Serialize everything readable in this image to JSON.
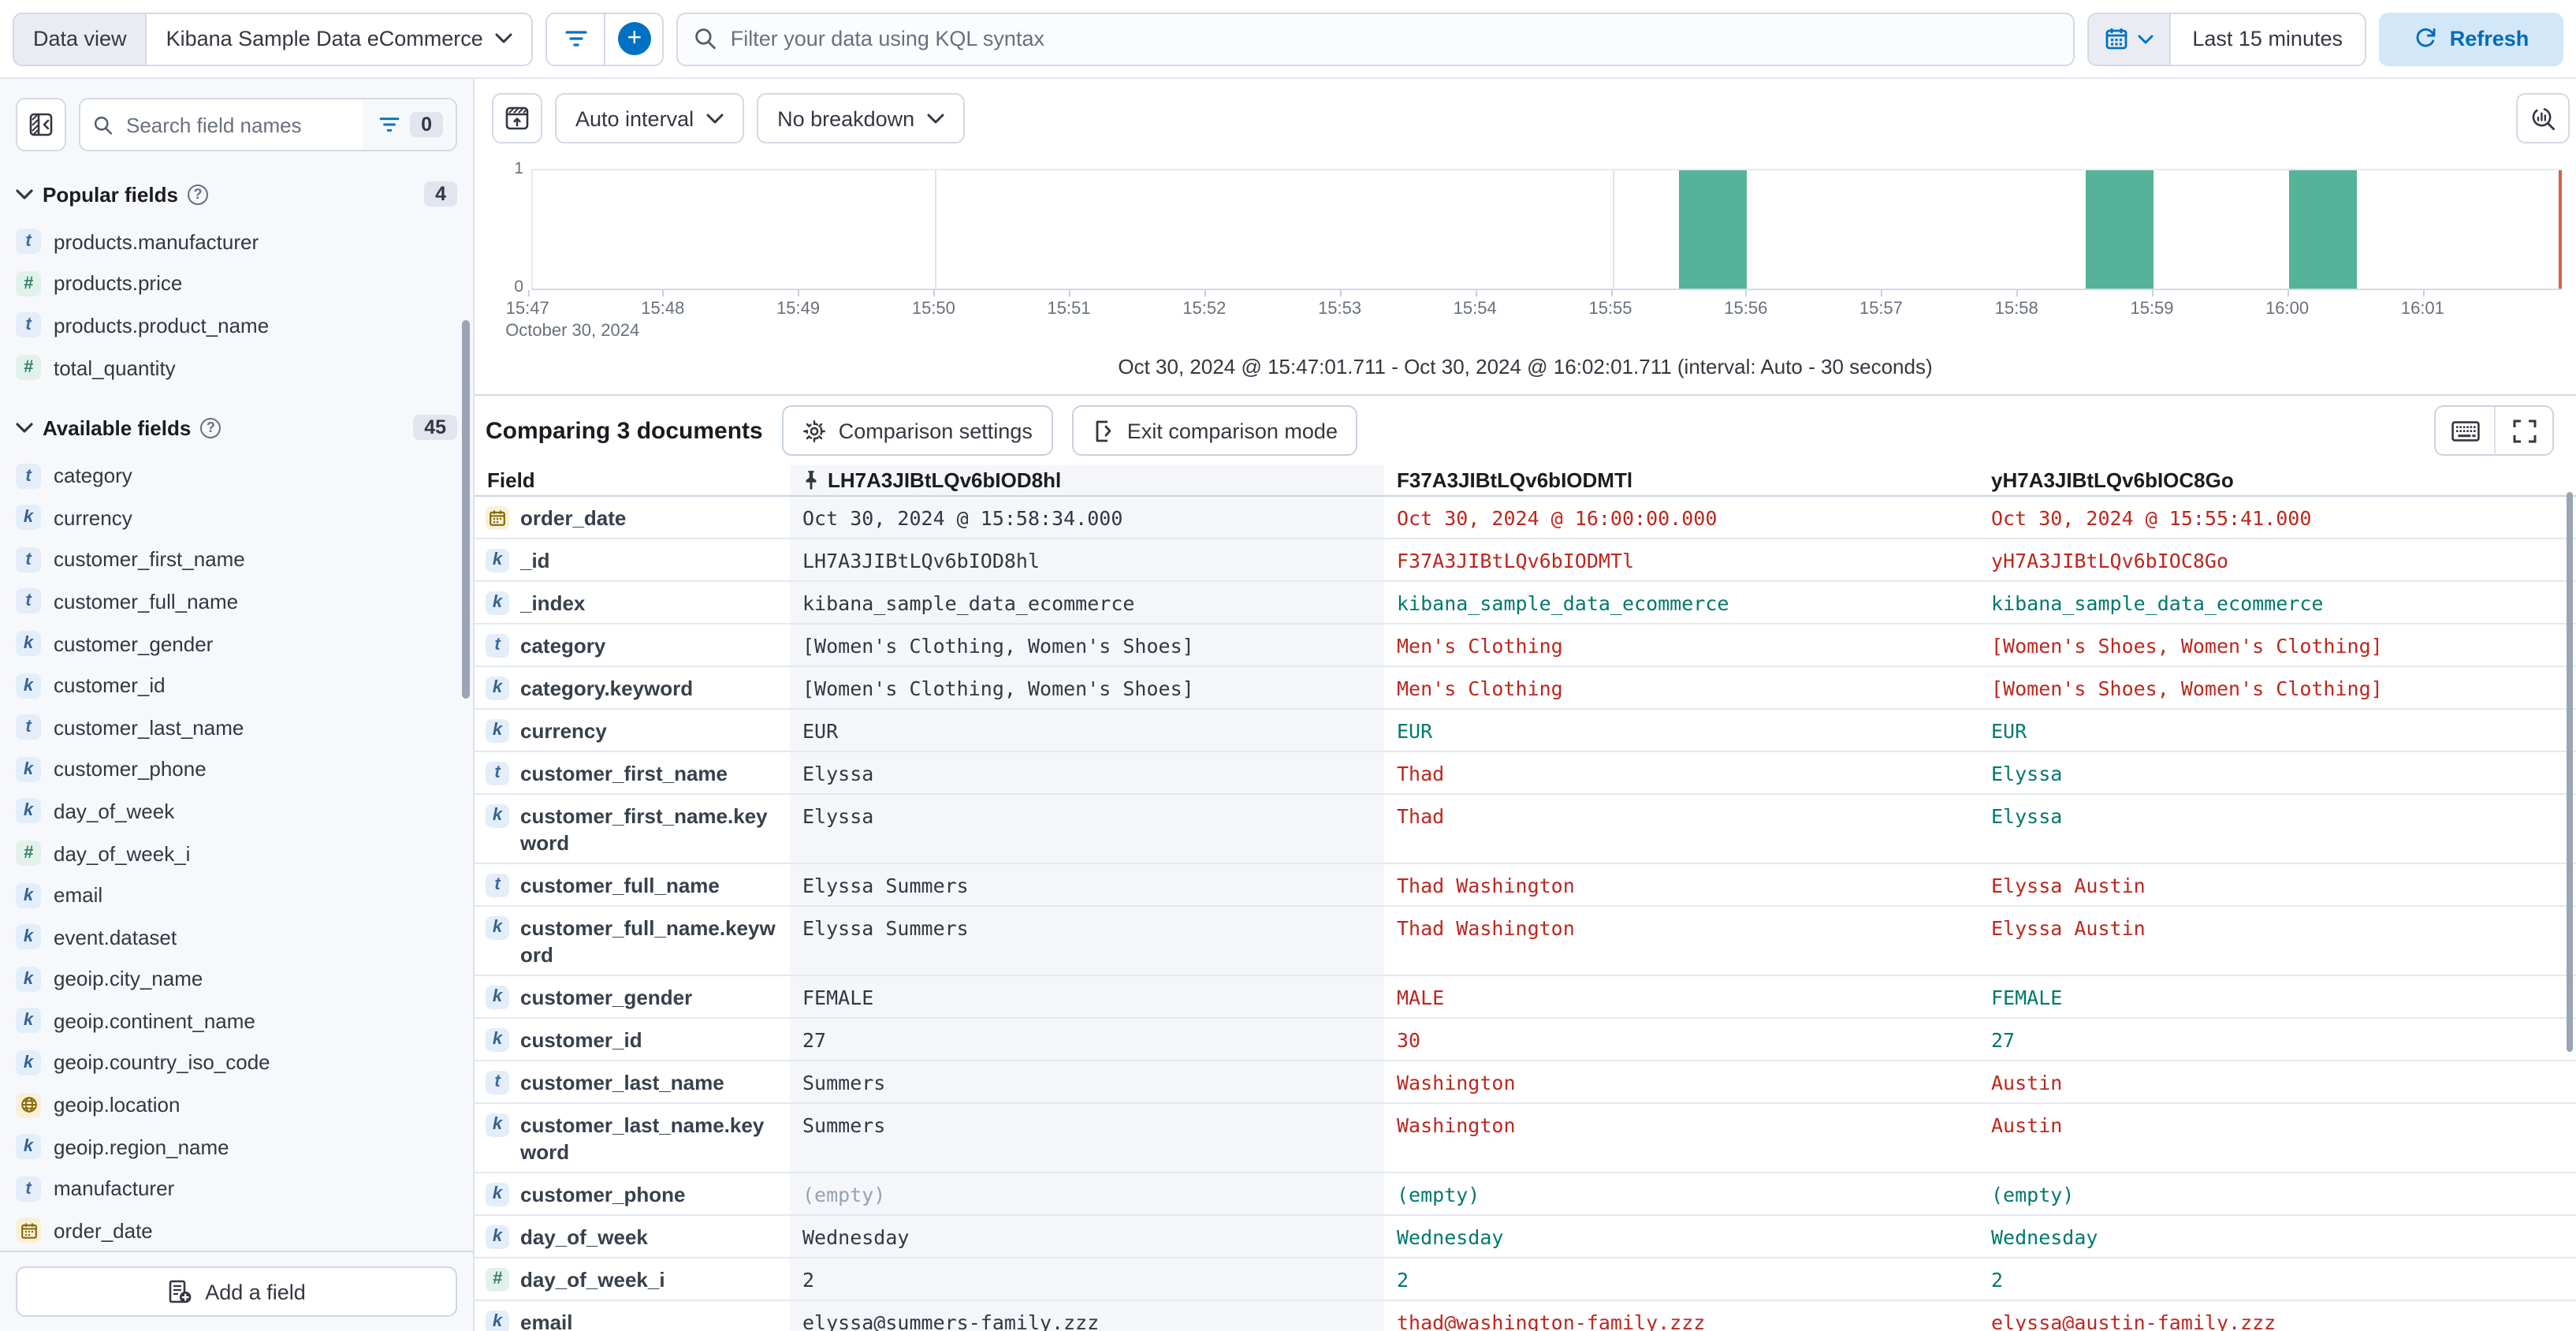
{
  "top_bar": {
    "data_view_label": "Data view",
    "data_view_name": "Kibana Sample Data eCommerce",
    "kql_placeholder": "Filter your data using KQL syntax",
    "time_range": "Last 15 minutes",
    "refresh_label": "Refresh"
  },
  "sidebar": {
    "search_placeholder": "Search field names",
    "filter_badge": "0",
    "popular": {
      "label": "Popular fields",
      "count": "4",
      "fields": [
        {
          "name": "products.manufacturer",
          "type": "t"
        },
        {
          "name": "products.price",
          "type": "n"
        },
        {
          "name": "products.product_name",
          "type": "t"
        },
        {
          "name": "total_quantity",
          "type": "n"
        }
      ]
    },
    "available": {
      "label": "Available fields",
      "count": "45",
      "fields": [
        {
          "name": "category",
          "type": "t"
        },
        {
          "name": "currency",
          "type": "k"
        },
        {
          "name": "customer_first_name",
          "type": "t"
        },
        {
          "name": "customer_full_name",
          "type": "t"
        },
        {
          "name": "customer_gender",
          "type": "k"
        },
        {
          "name": "customer_id",
          "type": "k"
        },
        {
          "name": "customer_last_name",
          "type": "t"
        },
        {
          "name": "customer_phone",
          "type": "k"
        },
        {
          "name": "day_of_week",
          "type": "k"
        },
        {
          "name": "day_of_week_i",
          "type": "n"
        },
        {
          "name": "email",
          "type": "k"
        },
        {
          "name": "event.dataset",
          "type": "k"
        },
        {
          "name": "geoip.city_name",
          "type": "k"
        },
        {
          "name": "geoip.continent_name",
          "type": "k"
        },
        {
          "name": "geoip.country_iso_code",
          "type": "k"
        },
        {
          "name": "geoip.location",
          "type": "g"
        },
        {
          "name": "geoip.region_name",
          "type": "k"
        },
        {
          "name": "manufacturer",
          "type": "t"
        },
        {
          "name": "order_date",
          "type": "d"
        }
      ]
    },
    "add_field_label": "Add a field"
  },
  "chart": {
    "interval_label": "Auto interval",
    "breakdown_label": "No breakdown",
    "footer": "Oct 30, 2024 @ 15:47:01.711 - Oct 30, 2024 @ 16:02:01.711 (interval: Auto - 30 seconds)"
  },
  "chart_data": {
    "type": "bar",
    "title": "",
    "xlabel": "",
    "ylabel": "",
    "range_start": "15:47:01.711",
    "range_end": "16:02:01.711",
    "range_seconds": 900,
    "interval_seconds": 30,
    "x_tick_labels": [
      "15:47",
      "15:48",
      "15:49",
      "15:50",
      "15:51",
      "15:52",
      "15:53",
      "15:54",
      "15:55",
      "15:56",
      "15:57",
      "15:58",
      "15:59",
      "16:00",
      "16:01"
    ],
    "x_context_label": "October 30, 2024",
    "gridline_times": [
      "15:50:00",
      "15:55:00",
      "16:00:00"
    ],
    "y_tick_labels": [
      "1",
      "0"
    ],
    "ylim": [
      0,
      1
    ],
    "bars": [
      {
        "time": "15:55:30",
        "count": 1
      },
      {
        "time": "15:58:30",
        "count": 1
      },
      {
        "time": "16:00:00",
        "count": 1
      }
    ],
    "bar_color": "#54b399",
    "end_marker_color": "#d6604c"
  },
  "comparison": {
    "title": "Comparing 3 documents",
    "settings_label": "Comparison settings",
    "exit_label": "Exit comparison mode"
  },
  "table": {
    "field_header": "Field",
    "doc_ids": [
      "LH7A3JIBtLQv6bIOD8hl",
      "F37A3JIBtLQv6bIODMTl",
      "yH7A3JIBtLQv6bIOC8Go"
    ],
    "pinned_column": 0,
    "rows": [
      {
        "field": "order_date",
        "type": "d",
        "values": [
          {
            "t": "Oct 30, 2024 @ 15:58:34.000",
            "c": "base"
          },
          {
            "t": "Oct 30, 2024 @ 16:00:00.000",
            "c": "diff"
          },
          {
            "t": "Oct 30, 2024 @ 15:55:41.000",
            "c": "diff"
          }
        ]
      },
      {
        "field": "_id",
        "type": "k",
        "values": [
          {
            "t": "LH7A3JIBtLQv6bIOD8hl",
            "c": "base"
          },
          {
            "t": "F37A3JIBtLQv6bIODMTl",
            "c": "diff"
          },
          {
            "t": "yH7A3JIBtLQv6bIOC8Go",
            "c": "diff"
          }
        ]
      },
      {
        "field": "_index",
        "type": "k",
        "values": [
          {
            "t": "kibana_sample_data_ecommerce",
            "c": "base"
          },
          {
            "t": "kibana_sample_data_ecommerce",
            "c": "same"
          },
          {
            "t": "kibana_sample_data_ecommerce",
            "c": "same"
          }
        ]
      },
      {
        "field": "category",
        "type": "t",
        "values": [
          {
            "t": "[Women's Clothing, Women's Shoes]",
            "c": "base"
          },
          {
            "t": "Men's Clothing",
            "c": "diff"
          },
          {
            "t": "[Women's Shoes, Women's Clothing]",
            "c": "diff"
          }
        ]
      },
      {
        "field": "category.keyword",
        "type": "k",
        "values": [
          {
            "t": "[Women's Clothing, Women's Shoes]",
            "c": "base"
          },
          {
            "t": "Men's Clothing",
            "c": "diff"
          },
          {
            "t": "[Women's Shoes, Women's Clothing]",
            "c": "diff"
          }
        ]
      },
      {
        "field": "currency",
        "type": "k",
        "values": [
          {
            "t": "EUR",
            "c": "base"
          },
          {
            "t": "EUR",
            "c": "same"
          },
          {
            "t": "EUR",
            "c": "same"
          }
        ]
      },
      {
        "field": "customer_first_name",
        "type": "t",
        "values": [
          {
            "t": "Elyssa",
            "c": "base"
          },
          {
            "t": "Thad",
            "c": "diff"
          },
          {
            "t": "Elyssa",
            "c": "same"
          }
        ]
      },
      {
        "field": "customer_first_name.keyword",
        "type": "k",
        "values": [
          {
            "t": "Elyssa",
            "c": "base"
          },
          {
            "t": "Thad",
            "c": "diff"
          },
          {
            "t": "Elyssa",
            "c": "same"
          }
        ]
      },
      {
        "field": "customer_full_name",
        "type": "t",
        "values": [
          {
            "t": "Elyssa Summers",
            "c": "base"
          },
          {
            "t": "Thad Washington",
            "c": "diff"
          },
          {
            "t": "Elyssa Austin",
            "c": "diff"
          }
        ]
      },
      {
        "field": "customer_full_name.keyword",
        "type": "k",
        "values": [
          {
            "t": "Elyssa Summers",
            "c": "base"
          },
          {
            "t": "Thad Washington",
            "c": "diff"
          },
          {
            "t": "Elyssa Austin",
            "c": "diff"
          }
        ]
      },
      {
        "field": "customer_gender",
        "type": "k",
        "values": [
          {
            "t": "FEMALE",
            "c": "base"
          },
          {
            "t": "MALE",
            "c": "diff"
          },
          {
            "t": "FEMALE",
            "c": "same"
          }
        ]
      },
      {
        "field": "customer_id",
        "type": "k",
        "values": [
          {
            "t": "27",
            "c": "base"
          },
          {
            "t": "30",
            "c": "diff"
          },
          {
            "t": "27",
            "c": "same"
          }
        ]
      },
      {
        "field": "customer_last_name",
        "type": "t",
        "values": [
          {
            "t": "Summers",
            "c": "base"
          },
          {
            "t": "Washington",
            "c": "diff"
          },
          {
            "t": "Austin",
            "c": "diff"
          }
        ]
      },
      {
        "field": "customer_last_name.keyword",
        "type": "k",
        "values": [
          {
            "t": "Summers",
            "c": "base"
          },
          {
            "t": "Washington",
            "c": "diff"
          },
          {
            "t": "Austin",
            "c": "diff"
          }
        ]
      },
      {
        "field": "customer_phone",
        "type": "k",
        "values": [
          {
            "t": "(empty)",
            "c": "muted"
          },
          {
            "t": "(empty)",
            "c": "same"
          },
          {
            "t": "(empty)",
            "c": "same"
          }
        ]
      },
      {
        "field": "day_of_week",
        "type": "k",
        "values": [
          {
            "t": "Wednesday",
            "c": "base"
          },
          {
            "t": "Wednesday",
            "c": "same"
          },
          {
            "t": "Wednesday",
            "c": "same"
          }
        ]
      },
      {
        "field": "day_of_week_i",
        "type": "n",
        "values": [
          {
            "t": "2",
            "c": "base"
          },
          {
            "t": "2",
            "c": "same"
          },
          {
            "t": "2",
            "c": "same"
          }
        ]
      },
      {
        "field": "email",
        "type": "k",
        "values": [
          {
            "t": "elyssa@summers-family.zzz",
            "c": "base"
          },
          {
            "t": "thad@washington-family.zzz",
            "c": "diff"
          },
          {
            "t": "elyssa@austin-family.zzz",
            "c": "diff"
          }
        ]
      }
    ]
  }
}
